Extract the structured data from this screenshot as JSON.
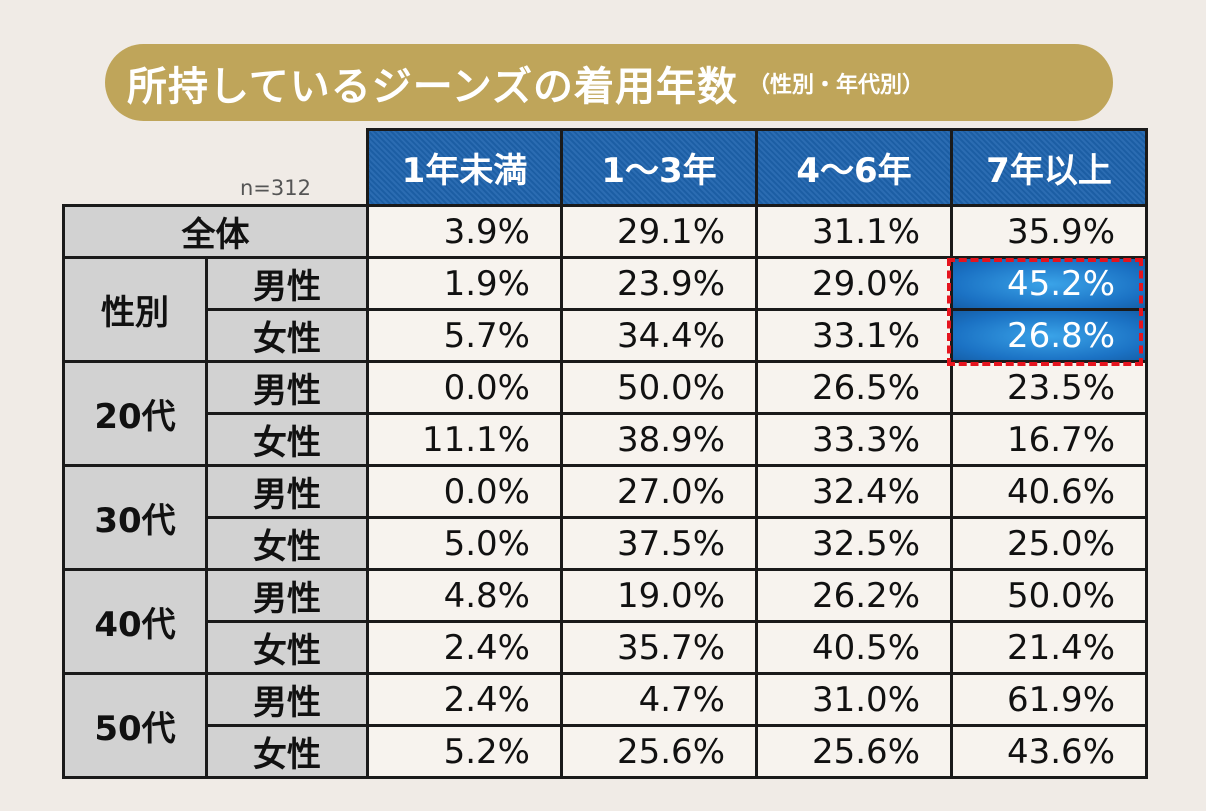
{
  "title": "所持しているジーンズの着用年数",
  "subtitle": "（性別・年代別）",
  "sample_note": "n=312",
  "chart_data": {
    "type": "table",
    "columns": [
      "1年未満",
      "1〜3年",
      "4〜6年",
      "7年以上"
    ],
    "rows": [
      {
        "group": "全体",
        "sub": "",
        "values": [
          "3.9%",
          "29.1%",
          "31.1%",
          "35.9%"
        ]
      },
      {
        "group": "性別",
        "sub": "男性",
        "values": [
          "1.9%",
          "23.9%",
          "29.0%",
          "45.2%"
        ]
      },
      {
        "group": "性別",
        "sub": "女性",
        "values": [
          "5.7%",
          "34.4%",
          "33.1%",
          "26.8%"
        ]
      },
      {
        "group": "20代",
        "sub": "男性",
        "values": [
          "0.0%",
          "50.0%",
          "26.5%",
          "23.5%"
        ]
      },
      {
        "group": "20代",
        "sub": "女性",
        "values": [
          "11.1%",
          "38.9%",
          "33.3%",
          "16.7%"
        ]
      },
      {
        "group": "30代",
        "sub": "男性",
        "values": [
          "0.0%",
          "27.0%",
          "32.4%",
          "40.6%"
        ]
      },
      {
        "group": "30代",
        "sub": "女性",
        "values": [
          "5.0%",
          "37.5%",
          "32.5%",
          "25.0%"
        ]
      },
      {
        "group": "40代",
        "sub": "男性",
        "values": [
          "4.8%",
          "19.0%",
          "26.2%",
          "50.0%"
        ]
      },
      {
        "group": "40代",
        "sub": "女性",
        "values": [
          "2.4%",
          "35.7%",
          "40.5%",
          "21.4%"
        ]
      },
      {
        "group": "50代",
        "sub": "男性",
        "values": [
          "2.4%",
          "4.7%",
          "31.0%",
          "61.9%"
        ]
      },
      {
        "group": "50代",
        "sub": "女性",
        "values": [
          "5.2%",
          "25.6%",
          "25.6%",
          "43.6%"
        ]
      }
    ],
    "highlighted_cells": [
      [
        1,
        3
      ],
      [
        2,
        3
      ]
    ],
    "colors": {
      "title_background": "#bfa55a",
      "header_background": "#1e63ad",
      "row_label_background": "#d2d2d2",
      "highlight_fill": "#2a8ad6",
      "highlight_border": "#e5141e"
    }
  }
}
